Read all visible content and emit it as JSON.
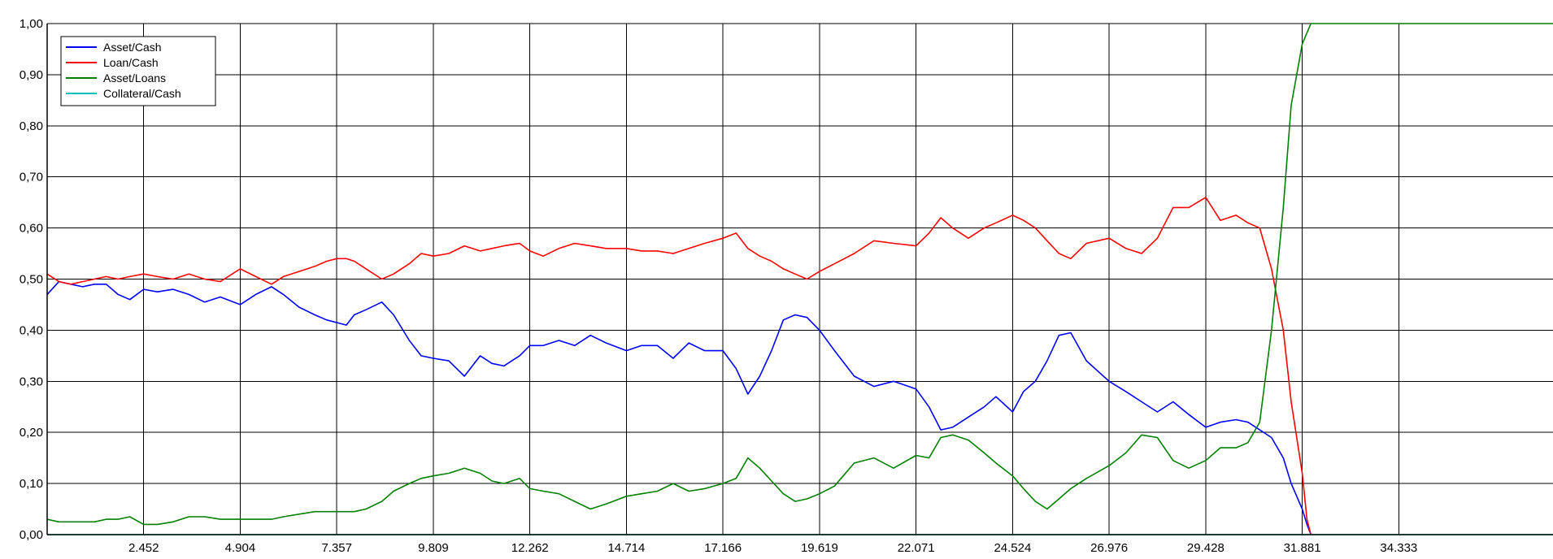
{
  "chart_data": {
    "type": "line",
    "title": "",
    "xlabel": "",
    "ylabel": "",
    "xlim": [
      0,
      38250
    ],
    "ylim": [
      0,
      1
    ],
    "grid": true,
    "legend_position": "top-left",
    "x_tick_labels": [
      "2.452",
      "4.904",
      "7.357",
      "9.809",
      "12.262",
      "14.714",
      "17.166",
      "19.619",
      "22.071",
      "24.524",
      "26.976",
      "29.428",
      "31.881",
      "34.333"
    ],
    "x_tick_values": [
      2452,
      4904,
      7357,
      9809,
      12262,
      14714,
      17166,
      19619,
      22071,
      24524,
      26976,
      29428,
      31881,
      34333
    ],
    "y_tick_labels": [
      "0,00",
      "0,10",
      "0,20",
      "0,30",
      "0,40",
      "0,50",
      "0,60",
      "0,70",
      "0,80",
      "0,90",
      "1,00"
    ],
    "y_tick_values": [
      0,
      0.1,
      0.2,
      0.3,
      0.4,
      0.5,
      0.6,
      0.7,
      0.8,
      0.9,
      1.0
    ],
    "series": [
      {
        "name": "Asset/Cash",
        "color": "#0000ff",
        "x": [
          0,
          300,
          600,
          900,
          1200,
          1500,
          1800,
          2100,
          2452,
          2800,
          3200,
          3600,
          4000,
          4400,
          4904,
          5300,
          5700,
          6000,
          6400,
          6800,
          7100,
          7357,
          7600,
          7800,
          8100,
          8500,
          8800,
          9200,
          9500,
          9809,
          10200,
          10600,
          11000,
          11300,
          11600,
          12000,
          12262,
          12600,
          13000,
          13400,
          13800,
          14200,
          14714,
          15100,
          15500,
          15900,
          16300,
          16700,
          17166,
          17500,
          17800,
          18100,
          18400,
          18700,
          19000,
          19300,
          19619,
          20000,
          20500,
          21000,
          21500,
          22071,
          22400,
          22700,
          23000,
          23400,
          23800,
          24100,
          24524,
          24800,
          25100,
          25400,
          25700,
          26000,
          26400,
          26976,
          27400,
          27800,
          28200,
          28600,
          29000,
          29428,
          29800,
          30200,
          30500,
          30800,
          31100,
          31400,
          31600,
          31881,
          32000,
          32100
        ],
        "y": [
          0.47,
          0.495,
          0.49,
          0.485,
          0.49,
          0.49,
          0.47,
          0.46,
          0.48,
          0.475,
          0.48,
          0.47,
          0.455,
          0.465,
          0.45,
          0.47,
          0.485,
          0.47,
          0.445,
          0.43,
          0.42,
          0.415,
          0.41,
          0.43,
          0.44,
          0.455,
          0.43,
          0.38,
          0.35,
          0.345,
          0.34,
          0.31,
          0.35,
          0.335,
          0.33,
          0.35,
          0.37,
          0.37,
          0.38,
          0.37,
          0.39,
          0.375,
          0.36,
          0.37,
          0.37,
          0.345,
          0.375,
          0.36,
          0.36,
          0.325,
          0.275,
          0.31,
          0.36,
          0.42,
          0.43,
          0.425,
          0.4,
          0.36,
          0.31,
          0.29,
          0.3,
          0.285,
          0.25,
          0.205,
          0.21,
          0.23,
          0.25,
          0.27,
          0.24,
          0.28,
          0.3,
          0.34,
          0.39,
          0.395,
          0.34,
          0.3,
          0.28,
          0.26,
          0.24,
          0.26,
          0.235,
          0.21,
          0.22,
          0.225,
          0.22,
          0.205,
          0.19,
          0.15,
          0.1,
          0.05,
          0.02,
          0.0
        ]
      },
      {
        "name": "Loan/Cash",
        "color": "#ff0000",
        "x": [
          0,
          300,
          600,
          900,
          1200,
          1500,
          1800,
          2100,
          2452,
          2800,
          3200,
          3600,
          4000,
          4400,
          4904,
          5300,
          5700,
          6000,
          6400,
          6800,
          7100,
          7357,
          7600,
          7800,
          8100,
          8500,
          8800,
          9200,
          9500,
          9809,
          10200,
          10600,
          11000,
          11300,
          11600,
          12000,
          12262,
          12600,
          13000,
          13400,
          13800,
          14200,
          14714,
          15100,
          15500,
          15900,
          16300,
          16700,
          17166,
          17500,
          17800,
          18100,
          18400,
          18700,
          19000,
          19300,
          19619,
          20000,
          20500,
          21000,
          21500,
          22071,
          22400,
          22700,
          23000,
          23400,
          23800,
          24100,
          24524,
          24800,
          25100,
          25400,
          25700,
          26000,
          26400,
          26976,
          27400,
          27800,
          28200,
          28600,
          29000,
          29428,
          29800,
          30200,
          30500,
          30800,
          31100,
          31400,
          31600,
          31881,
          32000,
          32100
        ],
        "y": [
          0.51,
          0.495,
          0.49,
          0.495,
          0.5,
          0.505,
          0.5,
          0.505,
          0.51,
          0.505,
          0.5,
          0.51,
          0.5,
          0.495,
          0.52,
          0.505,
          0.49,
          0.505,
          0.515,
          0.525,
          0.535,
          0.54,
          0.54,
          0.535,
          0.52,
          0.5,
          0.51,
          0.53,
          0.55,
          0.545,
          0.55,
          0.565,
          0.555,
          0.56,
          0.565,
          0.57,
          0.555,
          0.545,
          0.56,
          0.57,
          0.565,
          0.56,
          0.56,
          0.555,
          0.555,
          0.55,
          0.56,
          0.57,
          0.58,
          0.59,
          0.56,
          0.545,
          0.535,
          0.52,
          0.51,
          0.5,
          0.515,
          0.53,
          0.55,
          0.575,
          0.57,
          0.565,
          0.59,
          0.62,
          0.6,
          0.58,
          0.6,
          0.61,
          0.625,
          0.615,
          0.6,
          0.575,
          0.55,
          0.54,
          0.57,
          0.58,
          0.56,
          0.55,
          0.58,
          0.64,
          0.64,
          0.66,
          0.615,
          0.625,
          0.61,
          0.6,
          0.52,
          0.4,
          0.26,
          0.12,
          0.03,
          0.0
        ]
      },
      {
        "name": "Asset/Loans",
        "color": "#008000",
        "x": [
          0,
          300,
          600,
          900,
          1200,
          1500,
          1800,
          2100,
          2452,
          2800,
          3200,
          3600,
          4000,
          4400,
          4904,
          5300,
          5700,
          6000,
          6400,
          6800,
          7100,
          7357,
          7600,
          7800,
          8100,
          8500,
          8800,
          9200,
          9500,
          9809,
          10200,
          10600,
          11000,
          11300,
          11600,
          12000,
          12262,
          12600,
          13000,
          13400,
          13800,
          14200,
          14714,
          15100,
          15500,
          15900,
          16300,
          16700,
          17166,
          17500,
          17800,
          18100,
          18400,
          18700,
          19000,
          19300,
          19619,
          20000,
          20500,
          21000,
          21500,
          22071,
          22400,
          22700,
          23000,
          23400,
          23800,
          24100,
          24524,
          24800,
          25100,
          25400,
          25700,
          26000,
          26400,
          26976,
          27400,
          27800,
          28200,
          28600,
          29000,
          29428,
          29800,
          30200,
          30500,
          30800,
          31100,
          31400,
          31600,
          31881,
          32100,
          32300,
          32500,
          33000,
          34000,
          36000,
          38250
        ],
        "y": [
          0.03,
          0.025,
          0.025,
          0.025,
          0.025,
          0.03,
          0.03,
          0.035,
          0.02,
          0.02,
          0.025,
          0.035,
          0.035,
          0.03,
          0.03,
          0.03,
          0.03,
          0.035,
          0.04,
          0.045,
          0.045,
          0.045,
          0.045,
          0.045,
          0.05,
          0.065,
          0.085,
          0.1,
          0.11,
          0.115,
          0.12,
          0.13,
          0.12,
          0.105,
          0.1,
          0.11,
          0.09,
          0.085,
          0.08,
          0.065,
          0.05,
          0.06,
          0.075,
          0.08,
          0.085,
          0.1,
          0.085,
          0.09,
          0.1,
          0.11,
          0.15,
          0.13,
          0.105,
          0.08,
          0.065,
          0.07,
          0.08,
          0.095,
          0.14,
          0.15,
          0.13,
          0.155,
          0.15,
          0.19,
          0.195,
          0.185,
          0.16,
          0.14,
          0.115,
          0.09,
          0.065,
          0.05,
          0.07,
          0.09,
          0.11,
          0.135,
          0.16,
          0.195,
          0.19,
          0.145,
          0.13,
          0.145,
          0.17,
          0.17,
          0.18,
          0.22,
          0.4,
          0.64,
          0.84,
          0.96,
          1.0,
          1.0,
          1.0,
          1.0,
          1.0,
          1.0,
          1.0
        ]
      },
      {
        "name": "Collateral/Cash",
        "color": "#00c0c0",
        "x": [
          0,
          38250
        ],
        "y": [
          0,
          0
        ]
      }
    ]
  }
}
